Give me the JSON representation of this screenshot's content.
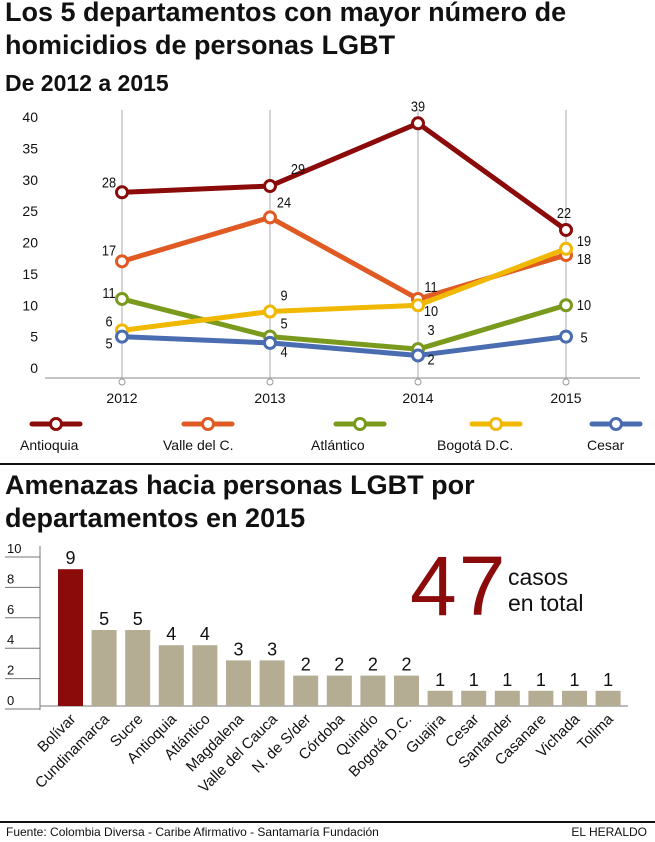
{
  "chart_data": [
    {
      "type": "line",
      "title": "Los 5 departamentos con mayor número de homicidios de personas LGBT",
      "subtitle": "De 2012 a 2015",
      "x": [
        "2012",
        "2013",
        "2014",
        "2015"
      ],
      "ylim": [
        0,
        40
      ],
      "yticks": [
        "0",
        "5",
        "10",
        "15",
        "20",
        "25",
        "30",
        "35",
        "40"
      ],
      "series": [
        {
          "name": "Antioquia",
          "values": [
            28,
            29,
            39,
            22
          ],
          "color": "#8b0a0a"
        },
        {
          "name": "Valle del C.",
          "values": [
            17,
            24,
            11,
            18
          ],
          "color": "#e05a24"
        },
        {
          "name": "Atlántico",
          "values": [
            11,
            5,
            3,
            10
          ],
          "color": "#7a9a1e"
        },
        {
          "name": "Bogotá D.C.",
          "values": [
            6,
            9,
            10,
            19
          ],
          "color": "#f0b800"
        },
        {
          "name": "Cesar",
          "values": [
            5,
            4,
            2,
            5
          ],
          "color": "#4a6cb0"
        }
      ]
    },
    {
      "type": "bar",
      "title": "Amenazas hacia personas LGBT por departamentos en 2015",
      "categories": [
        "Bolívar",
        "Cundinamarca",
        "Sucre",
        "Antioquia",
        "Atlántico",
        "Magdalena",
        "Valle del Cauca",
        "N. de S/der",
        "Córdoba",
        "Quindío",
        "Bogotá D.C.",
        "Guajira",
        "Cesar",
        "Santander",
        "Casanare",
        "Vichada",
        "Tolima"
      ],
      "values": [
        9,
        5,
        5,
        4,
        4,
        3,
        3,
        2,
        2,
        2,
        2,
        1,
        1,
        1,
        1,
        1,
        1
      ],
      "ylim": [
        0,
        10
      ],
      "yticks": [
        "0",
        "2",
        "4",
        "6",
        "8",
        "10"
      ],
      "highlight_color": "#8b0a0a",
      "bar_color": "#b5ac94"
    }
  ],
  "total": {
    "number": "47",
    "line1": "casos",
    "line2": "en total"
  },
  "footer": {
    "source": "Fuente: Colombia Diversa - Caribe Afirmativo - Santamaría Fundación",
    "brand": "EL HERALDO"
  }
}
